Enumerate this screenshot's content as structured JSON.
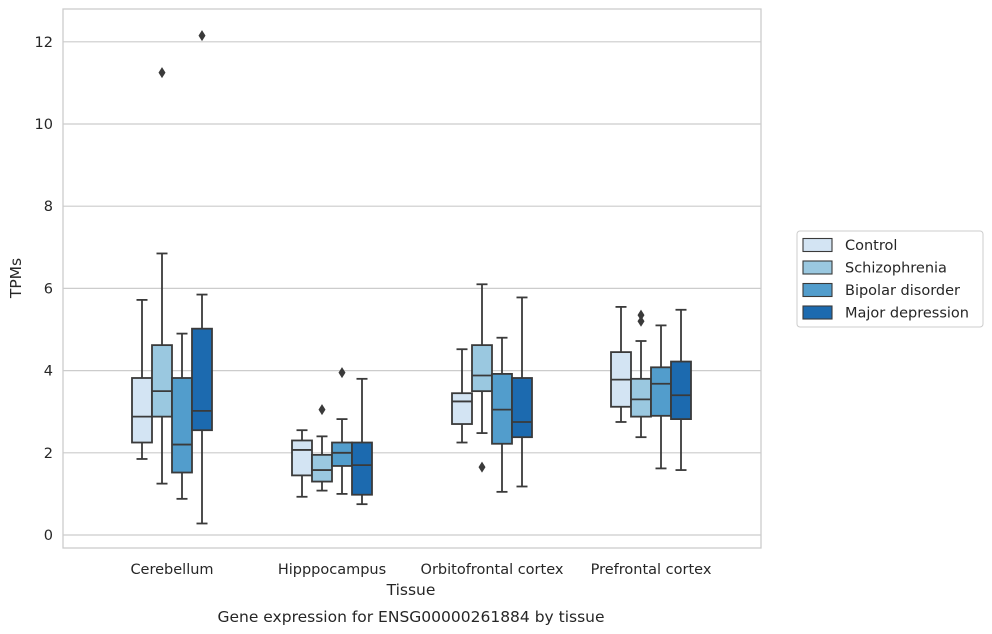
{
  "chart_data": {
    "type": "box",
    "xlabel": "Tissue",
    "ylabel": "TPMs",
    "caption": "Gene expression for ENSG00000261884 by tissue",
    "ylim": [
      -0.3,
      12.75
    ],
    "yticks": [
      0,
      2,
      4,
      6,
      8,
      10,
      12
    ],
    "grid": true,
    "legend_position": "right",
    "categories": [
      "Cerebellum",
      "Hipppocampus",
      "Orbitofrontal cortex",
      "Prefrontal cortex"
    ],
    "series": [
      {
        "name": "Control",
        "color": "#d3e4f3",
        "boxes": [
          {
            "whisker_low": 1.85,
            "q1": 2.25,
            "median": 2.88,
            "q3": 3.82,
            "whisker_high": 5.72,
            "outliers": []
          },
          {
            "whisker_low": 0.93,
            "q1": 1.45,
            "median": 2.07,
            "q3": 2.3,
            "whisker_high": 2.55,
            "outliers": []
          },
          {
            "whisker_low": 2.25,
            "q1": 2.7,
            "median": 3.25,
            "q3": 3.45,
            "whisker_high": 4.52,
            "outliers": []
          },
          {
            "whisker_low": 2.75,
            "q1": 3.12,
            "median": 3.78,
            "q3": 4.45,
            "whisker_high": 5.55,
            "outliers": []
          }
        ]
      },
      {
        "name": "Schizophrenia",
        "color": "#9ac8e0",
        "boxes": [
          {
            "whisker_low": 1.25,
            "q1": 2.88,
            "median": 3.5,
            "q3": 4.62,
            "whisker_high": 6.85,
            "outliers": [
              11.25
            ]
          },
          {
            "whisker_low": 1.08,
            "q1": 1.3,
            "median": 1.58,
            "q3": 1.95,
            "whisker_high": 2.4,
            "outliers": [
              3.05
            ]
          },
          {
            "whisker_low": 2.48,
            "q1": 3.5,
            "median": 3.88,
            "q3": 4.62,
            "whisker_high": 6.1,
            "outliers": [
              1.65
            ]
          },
          {
            "whisker_low": 2.38,
            "q1": 2.88,
            "median": 3.3,
            "q3": 3.8,
            "whisker_high": 4.72,
            "outliers": [
              5.35,
              5.2
            ]
          }
        ]
      },
      {
        "name": "Bipolar disorder",
        "color": "#529dcc",
        "boxes": [
          {
            "whisker_low": 0.88,
            "q1": 1.52,
            "median": 2.2,
            "q3": 3.82,
            "whisker_high": 4.9,
            "outliers": []
          },
          {
            "whisker_low": 1.0,
            "q1": 1.68,
            "median": 2.0,
            "q3": 2.25,
            "whisker_high": 2.82,
            "outliers": [
              3.95
            ]
          },
          {
            "whisker_low": 1.05,
            "q1": 2.22,
            "median": 3.05,
            "q3": 3.92,
            "whisker_high": 4.8,
            "outliers": []
          },
          {
            "whisker_low": 1.62,
            "q1": 2.9,
            "median": 3.68,
            "q3": 4.08,
            "whisker_high": 5.1,
            "outliers": []
          }
        ]
      },
      {
        "name": "Major depression",
        "color": "#1c6aaf",
        "boxes": [
          {
            "whisker_low": 0.28,
            "q1": 2.55,
            "median": 3.02,
            "q3": 5.02,
            "whisker_high": 5.85,
            "outliers": [
              12.15
            ]
          },
          {
            "whisker_low": 0.75,
            "q1": 0.98,
            "median": 1.7,
            "q3": 2.25,
            "whisker_high": 3.8,
            "outliers": []
          },
          {
            "whisker_low": 1.18,
            "q1": 2.38,
            "median": 2.75,
            "q3": 3.82,
            "whisker_high": 5.78,
            "outliers": []
          },
          {
            "whisker_low": 1.58,
            "q1": 2.82,
            "median": 3.4,
            "q3": 4.22,
            "whisker_high": 5.48,
            "outliers": []
          }
        ]
      }
    ]
  }
}
